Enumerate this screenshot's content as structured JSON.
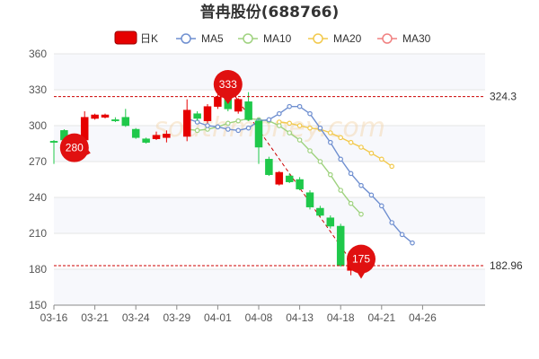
{
  "chart_data": {
    "type": "candlestick",
    "title": "普冉股份(688766)",
    "legend": [
      {
        "label": "日K",
        "color": "#e60000"
      },
      {
        "label": "MA5",
        "color": "#6f8fd0"
      },
      {
        "label": "MA10",
        "color": "#9fd27f"
      },
      {
        "label": "MA20",
        "color": "#f2c94c"
      },
      {
        "label": "MA30",
        "color": "#f08080"
      }
    ],
    "ylim": [
      150,
      360
    ],
    "yticks": [
      150,
      180,
      210,
      240,
      270,
      300,
      330,
      360
    ],
    "xtick_labels": [
      "03-16",
      "03-21",
      "03-24",
      "03-29",
      "04-01",
      "04-08",
      "04-13",
      "04-18",
      "04-21",
      "04-26"
    ],
    "xtick_index": [
      0,
      4,
      8,
      12,
      16,
      20,
      24,
      28,
      32,
      36
    ],
    "up_color": "#e60000",
    "down_color": "#1fc84a",
    "candles": [
      {
        "o": 287,
        "c": 286,
        "h": 288,
        "l": 268
      },
      {
        "o": 296,
        "c": 288,
        "h": 297,
        "l": 287
      },
      {
        "o": 286,
        "c": 280,
        "h": 290,
        "l": 276
      },
      {
        "o": 288,
        "c": 307,
        "h": 312,
        "l": 287
      },
      {
        "o": 306,
        "c": 309,
        "h": 310,
        "l": 305
      },
      {
        "o": 307,
        "c": 309,
        "h": 310,
        "l": 306
      },
      {
        "o": 305,
        "c": 304,
        "h": 307,
        "l": 303
      },
      {
        "o": 307,
        "c": 300,
        "h": 314,
        "l": 299
      },
      {
        "o": 297,
        "c": 290,
        "h": 298,
        "l": 289
      },
      {
        "o": 289,
        "c": 286,
        "h": 290,
        "l": 285
      },
      {
        "o": 289,
        "c": 292,
        "h": 295,
        "l": 288
      },
      {
        "o": 290,
        "c": 293,
        "h": 296,
        "l": 286
      },
      {
        "o": 291,
        "c": 313,
        "h": 322,
        "l": 287
      },
      {
        "o": 310,
        "c": 306,
        "h": 312,
        "l": 304
      },
      {
        "o": 304,
        "c": 316,
        "h": 318,
        "l": 302
      },
      {
        "o": 316,
        "c": 324,
        "h": 333,
        "l": 314
      },
      {
        "o": 324,
        "c": 314,
        "h": 326,
        "l": 312
      },
      {
        "o": 312,
        "c": 322,
        "h": 323,
        "l": 310
      },
      {
        "o": 320,
        "c": 305,
        "h": 328,
        "l": 304
      },
      {
        "o": 304,
        "c": 282,
        "h": 306,
        "l": 268
      },
      {
        "o": 272,
        "c": 259,
        "h": 274,
        "l": 258
      },
      {
        "o": 251,
        "c": 261,
        "h": 262,
        "l": 250
      },
      {
        "o": 258,
        "c": 253,
        "h": 260,
        "l": 252
      },
      {
        "o": 255,
        "c": 247,
        "h": 257,
        "l": 246
      },
      {
        "o": 244,
        "c": 232,
        "h": 246,
        "l": 230
      },
      {
        "o": 231,
        "c": 225,
        "h": 233,
        "l": 224
      },
      {
        "o": 223,
        "c": 216,
        "h": 225,
        "l": 214
      },
      {
        "o": 216,
        "c": 183,
        "h": 218,
        "l": 182
      },
      {
        "o": 179,
        "c": 186,
        "h": 188,
        "l": 175
      },
      {
        "o": 195,
        "c": 190,
        "h": 196,
        "l": 189
      }
    ],
    "candle_x": [
      0,
      1,
      2,
      3,
      4,
      5,
      6,
      7,
      8,
      9,
      10,
      11,
      13,
      14,
      15,
      16,
      17,
      18,
      19,
      20,
      21,
      22,
      23,
      24,
      25,
      26,
      27,
      28,
      29,
      30
    ],
    "ma5": [
      [
        13,
        306
      ],
      [
        14,
        303
      ],
      [
        15,
        300
      ],
      [
        16,
        299
      ],
      [
        17,
        297
      ],
      [
        18,
        296
      ],
      [
        19,
        298
      ],
      [
        20,
        304
      ],
      [
        21,
        305
      ],
      [
        22,
        310
      ],
      [
        23,
        316
      ],
      [
        24,
        316
      ],
      [
        25,
        310
      ],
      [
        26,
        298
      ],
      [
        27,
        286
      ],
      [
        28,
        272
      ],
      [
        29,
        260
      ],
      [
        30,
        250
      ],
      [
        31,
        242
      ],
      [
        32,
        233
      ],
      [
        33,
        219
      ],
      [
        34,
        209
      ],
      [
        35,
        202
      ]
    ],
    "ma10": [
      [
        13,
        297
      ],
      [
        14,
        296
      ],
      [
        15,
        297
      ],
      [
        16,
        299
      ],
      [
        17,
        302
      ],
      [
        18,
        304
      ],
      [
        19,
        306
      ],
      [
        20,
        305
      ],
      [
        21,
        304
      ],
      [
        22,
        300
      ],
      [
        23,
        294
      ],
      [
        24,
        288
      ],
      [
        25,
        279
      ],
      [
        26,
        270
      ],
      [
        27,
        259
      ],
      [
        28,
        246
      ],
      [
        29,
        235
      ],
      [
        30,
        226
      ]
    ],
    "ma20": [
      [
        22,
        303
      ],
      [
        23,
        302
      ],
      [
        24,
        300
      ],
      [
        25,
        298
      ],
      [
        26,
        297
      ],
      [
        27,
        294
      ],
      [
        28,
        290
      ],
      [
        29,
        286
      ],
      [
        30,
        282
      ],
      [
        31,
        277
      ],
      [
        32,
        272
      ],
      [
        33,
        266
      ]
    ],
    "ref_lines": [
      {
        "value": 324.3,
        "label": "324.3"
      },
      {
        "value": 182.96,
        "label": "182.96"
      }
    ],
    "markers": [
      {
        "index": 2,
        "value": 280,
        "label": "280"
      },
      {
        "index": 16,
        "value": 333,
        "label": "333"
      },
      {
        "index": 29,
        "value": 175,
        "label": "175"
      }
    ],
    "watermark": "southmoney.com"
  }
}
